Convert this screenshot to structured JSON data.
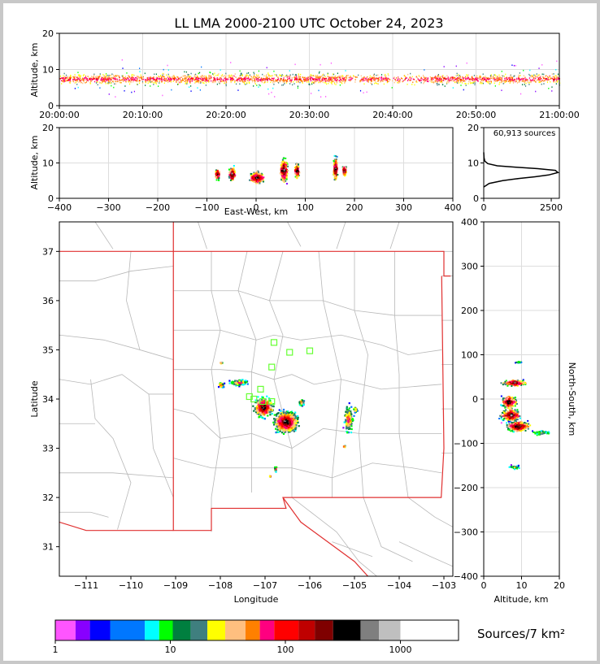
{
  "title": "LL LMA 2000-2100 UTC October 24, 2023",
  "chart_data": [
    {
      "panel": "altitude-time",
      "type": "scatter",
      "ylabel": "Altitude, km",
      "xlim": [
        "20:00:00",
        "21:00:00"
      ],
      "ylim": [
        0,
        20
      ],
      "x_ticks": [
        "20:00:00",
        "20:10:00",
        "20:20:00",
        "20:30:00",
        "20:40:00",
        "20:50:00",
        "21:00:00"
      ],
      "y_ticks": [
        "0",
        "10",
        "20"
      ],
      "grid": true,
      "description_core_altitude_km": [
        5,
        10
      ]
    },
    {
      "panel": "altitude-east-west",
      "type": "scatter",
      "xlabel": "East-West, km",
      "ylabel": "Altitude, km",
      "xlim": [
        -400,
        400
      ],
      "ylim": [
        0,
        20
      ],
      "x_ticks": [
        "−400",
        "−300",
        "−200",
        "−100",
        "0",
        "100",
        "200",
        "300",
        "400"
      ],
      "y_ticks": [
        "0",
        "10",
        "20"
      ],
      "grid": true
    },
    {
      "panel": "altitude-histogram",
      "type": "line",
      "annotation": "60,913 sources",
      "xlim": [
        0,
        2800
      ],
      "ylim": [
        0,
        20
      ],
      "x_ticks": [
        "0",
        "2500"
      ],
      "y_ticks": [
        "0",
        "10",
        "20"
      ],
      "curve": [
        {
          "count": 0,
          "alt": 3.2
        },
        {
          "count": 200,
          "alt": 4.2
        },
        {
          "count": 700,
          "alt": 5.0
        },
        {
          "count": 1300,
          "alt": 5.6
        },
        {
          "count": 1900,
          "alt": 6.1
        },
        {
          "count": 2400,
          "alt": 6.6
        },
        {
          "count": 2750,
          "alt": 7.3
        },
        {
          "count": 2650,
          "alt": 7.9
        },
        {
          "count": 2000,
          "alt": 8.4
        },
        {
          "count": 1200,
          "alt": 8.8
        },
        {
          "count": 500,
          "alt": 9.2
        },
        {
          "count": 150,
          "alt": 9.8
        },
        {
          "count": 40,
          "alt": 10.5
        },
        {
          "count": 10,
          "alt": 11.5
        },
        {
          "count": 0,
          "alt": 13
        }
      ]
    },
    {
      "panel": "plan-view-map",
      "type": "scatter",
      "xlabel": "Longitude",
      "ylabel": "Latitude",
      "xlim": [
        -111.6,
        -102.8
      ],
      "ylim": [
        30.4,
        37.6
      ],
      "x_ticks": [
        "−111",
        "−110",
        "−109",
        "−108",
        "−107",
        "−106",
        "−105",
        "−104",
        "−103"
      ],
      "y_ticks": [
        "31",
        "32",
        "33",
        "34",
        "35",
        "36",
        "37"
      ],
      "stations": [
        {
          "lon": -106.8,
          "lat": 35.15
        },
        {
          "lon": -106.45,
          "lat": 34.95
        },
        {
          "lon": -106.0,
          "lat": 34.98
        },
        {
          "lon": -106.85,
          "lat": 34.65
        },
        {
          "lon": -107.1,
          "lat": 34.2
        },
        {
          "lon": -107.35,
          "lat": 34.05
        },
        {
          "lon": -107.25,
          "lat": 34.0
        },
        {
          "lon": -107.05,
          "lat": 33.95
        },
        {
          "lon": -106.85,
          "lat": 33.95
        }
      ]
    },
    {
      "panel": "north-south-altitude",
      "type": "scatter",
      "xlabel": "Altitude, km",
      "ylabel": "North-South, km",
      "xlim": [
        0,
        20
      ],
      "ylim": [
        -400,
        400
      ],
      "x_ticks": [
        "0",
        "10",
        "20"
      ],
      "y_ticks": [
        "−400",
        "−300",
        "−200",
        "−100",
        "0",
        "100",
        "200",
        "300",
        "400"
      ],
      "grid": true
    }
  ],
  "colorbar": {
    "label": "Sources/7 km²",
    "ticks": [
      "1",
      "10",
      "100",
      "1000"
    ],
    "colors": [
      "#ff55ff",
      "#8800ff",
      "#0000ff",
      "#0077ff",
      "#00ffff",
      "#00ff00",
      "#007f3f",
      "#3f7f7f",
      "#ffff00",
      "#ffbf7f",
      "#ff8000",
      "#ff0080",
      "#ff0000",
      "#bf0000",
      "#7f0000",
      "#000000",
      "#7f7f7f",
      "#bfbfbf",
      "#ffffff"
    ]
  }
}
